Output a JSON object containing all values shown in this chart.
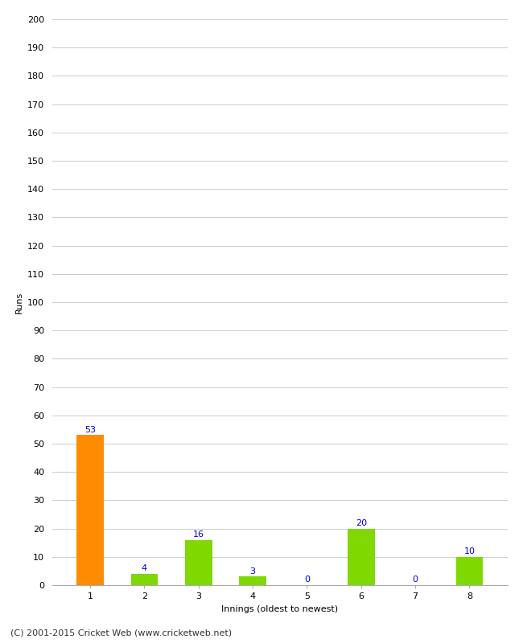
{
  "categories": [
    1,
    2,
    3,
    4,
    5,
    6,
    7,
    8
  ],
  "values": [
    53,
    4,
    16,
    3,
    0,
    20,
    0,
    10
  ],
  "bar_colors": [
    "#FF8C00",
    "#7FD800",
    "#7FD800",
    "#7FD800",
    "#7FD800",
    "#7FD800",
    "#7FD800",
    "#7FD800"
  ],
  "xlabel": "Innings (oldest to newest)",
  "ylabel": "Runs",
  "ylim": [
    0,
    200
  ],
  "yticks": [
    0,
    10,
    20,
    30,
    40,
    50,
    60,
    70,
    80,
    90,
    100,
    110,
    120,
    130,
    140,
    150,
    160,
    170,
    180,
    190,
    200
  ],
  "label_color": "#0000CC",
  "label_fontsize": 8,
  "footer": "(C) 2001-2015 Cricket Web (www.cricketweb.net)",
  "background_color": "#FFFFFF",
  "grid_color": "#CCCCCC",
  "bar_width": 0.5
}
